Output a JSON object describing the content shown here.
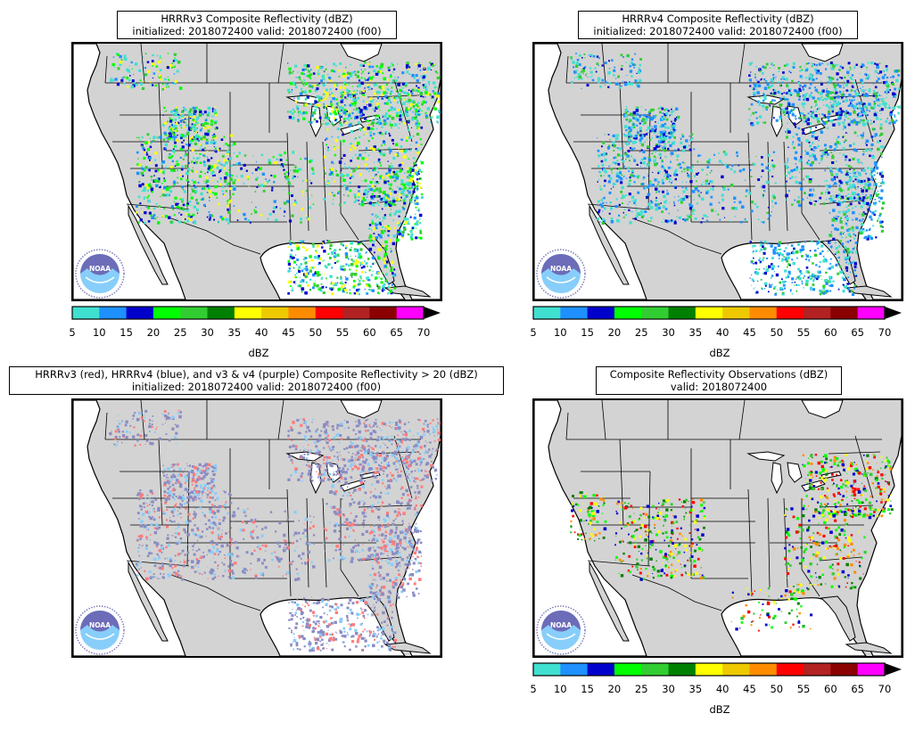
{
  "panels": [
    {
      "title_line1": "HRRRv3 Composite Reflectivity (dBZ)",
      "title_line2": "initialized: 2018072400 valid: 2018072400 (f00)",
      "has_colorbar": true,
      "product": "hrrrv3"
    },
    {
      "title_line1": "HRRRv4 Composite Reflectivity (dBZ)",
      "title_line2": "initialized: 2018072400 valid: 2018072400 (f00)",
      "has_colorbar": true,
      "product": "hrrrv4"
    },
    {
      "title_line1": "HRRRv3 (red), HRRRv4 (blue), and v3 & v4 (purple) Composite Reflectivity > 20 (dBZ)",
      "title_line2": "initialized: 2018072400 valid: 2018072400 (f00)",
      "has_colorbar": false,
      "product": "overlap"
    },
    {
      "title_line1": "Composite Reflectivity Observations (dBZ)",
      "title_line2": "valid: 2018072400",
      "has_colorbar": true,
      "product": "obs"
    }
  ],
  "colorbar": {
    "label": "dBZ",
    "ticks": [
      "5",
      "10",
      "15",
      "20",
      "25",
      "30",
      "35",
      "40",
      "45",
      "50",
      "55",
      "60",
      "65",
      "70"
    ],
    "colors": [
      "#40e0d0",
      "#1e90ff",
      "#0000cd",
      "#00ff00",
      "#32cd32",
      "#008000",
      "#ffff00",
      "#eec900",
      "#ff8c00",
      "#ff0000",
      "#b22222",
      "#8b0000",
      "#ff00ff"
    ],
    "extend": "max",
    "extend_color": "#000000"
  },
  "logo": {
    "text": "NOAA",
    "icon": "noaa-logo"
  },
  "map_colors": {
    "land": "#d3d3d3",
    "water": "#ffffff",
    "borders": "#000000"
  },
  "overlay_colors": {
    "v3": "#ff7b7b",
    "v4": "#87cefa",
    "both": "#8a8cc4"
  }
}
